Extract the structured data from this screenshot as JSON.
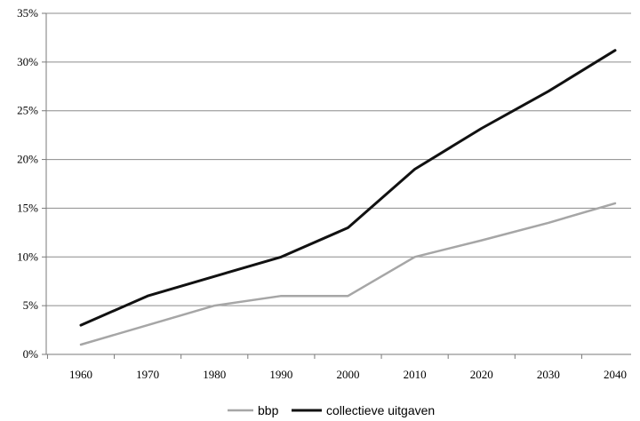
{
  "chart_data": {
    "type": "line",
    "title": "",
    "xlabel": "",
    "ylabel": "",
    "categories": [
      "1960",
      "1970",
      "1980",
      "1990",
      "2000",
      "2010",
      "2020",
      "2030",
      "2040"
    ],
    "ylim": [
      0,
      35
    ],
    "yticks": [
      0,
      5,
      10,
      15,
      20,
      25,
      30,
      35
    ],
    "ytick_labels": [
      "0%",
      "5%",
      "10%",
      "15%",
      "20%",
      "25%",
      "30%",
      "35%"
    ],
    "grid": "horizontal",
    "legend_position": "bottom",
    "series": [
      {
        "name": "bbp",
        "color": "#a6a6a6",
        "values": [
          1,
          3,
          5,
          6,
          6,
          10,
          11.7,
          13.5,
          15.5
        ]
      },
      {
        "name": "collectieve uitgaven",
        "color": "#111111",
        "values": [
          3,
          6,
          8,
          10,
          13,
          19,
          23.2,
          27,
          31.2
        ]
      }
    ]
  },
  "colors": {
    "grid": "#8c8c8c",
    "axis": "#7a7a7a",
    "background": "#ffffff"
  }
}
